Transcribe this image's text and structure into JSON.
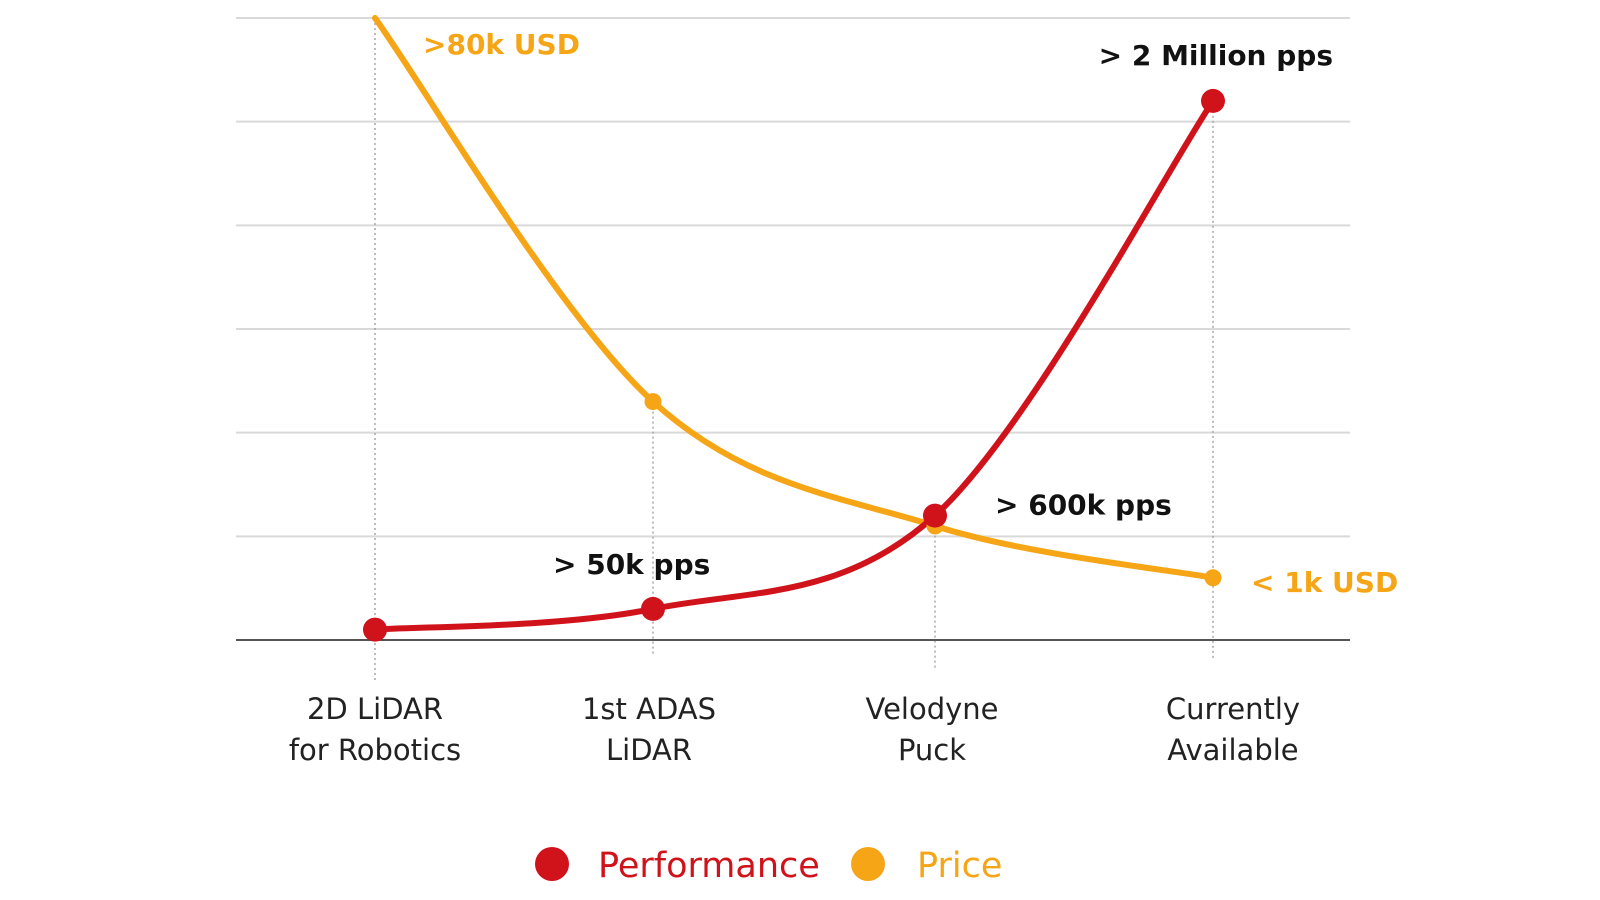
{
  "chart_data": {
    "type": "line",
    "categories": [
      [
        "2D LiDAR",
        "for Robotics"
      ],
      [
        "1st ADAS",
        "LiDAR"
      ],
      [
        "Velodyne",
        "Puck"
      ],
      [
        "Currently",
        "Available"
      ]
    ],
    "series": [
      {
        "name": "Performance",
        "color": "#d0121b",
        "values": [
          0.1,
          0.3,
          1.2,
          5.2
        ]
      },
      {
        "name": "Price",
        "color": "#f5a515",
        "values": [
          6.0,
          2.3,
          1.1,
          0.6
        ]
      }
    ],
    "ylim": [
      0,
      6
    ],
    "grid": true,
    "legend_position": "bottom-center",
    "annotations": [
      {
        "text": ">80k USD",
        "series": "Price",
        "point": 0
      },
      {
        "text": "> 50k pps",
        "series": "Performance",
        "point": 1
      },
      {
        "text": "> 600k pps",
        "series": "Performance",
        "point": 2
      },
      {
        "text": "> 2 Million pps",
        "series": "Performance",
        "point": 3
      },
      {
        "text": "< 1k USD",
        "series": "Price",
        "point": 3
      }
    ]
  }
}
